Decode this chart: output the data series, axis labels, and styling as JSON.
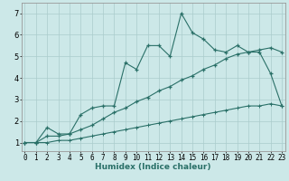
{
  "title": "",
  "xlabel": "Humidex (Indice chaleur)",
  "ylabel": "",
  "bg_color": "#cce8e8",
  "grid_color": "#aacccc",
  "line_color": "#2a7068",
  "x_ticks": [
    0,
    1,
    2,
    3,
    4,
    5,
    6,
    7,
    8,
    9,
    10,
    11,
    12,
    13,
    14,
    15,
    16,
    17,
    18,
    19,
    20,
    21,
    22,
    23
  ],
  "y_ticks": [
    1,
    2,
    3,
    4,
    5,
    6,
    7
  ],
  "xlim": [
    -0.3,
    23.3
  ],
  "ylim": [
    0.6,
    7.5
  ],
  "line1_x": [
    0,
    1,
    2,
    3,
    4,
    5,
    6,
    7,
    8,
    9,
    10,
    11,
    12,
    13,
    14,
    15,
    16,
    17,
    18,
    19,
    20,
    21,
    22,
    23
  ],
  "line1_y": [
    1.0,
    1.0,
    1.7,
    1.4,
    1.4,
    2.3,
    2.6,
    2.7,
    2.7,
    4.7,
    4.4,
    5.5,
    5.5,
    5.0,
    7.0,
    6.1,
    5.8,
    5.3,
    5.2,
    5.5,
    5.2,
    5.2,
    4.2,
    2.7
  ],
  "line2_x": [
    0,
    1,
    2,
    3,
    4,
    5,
    6,
    7,
    8,
    9,
    10,
    11,
    12,
    13,
    14,
    15,
    16,
    17,
    18,
    19,
    20,
    21,
    22,
    23
  ],
  "line2_y": [
    1.0,
    1.0,
    1.3,
    1.3,
    1.4,
    1.6,
    1.8,
    2.1,
    2.4,
    2.6,
    2.9,
    3.1,
    3.4,
    3.6,
    3.9,
    4.1,
    4.4,
    4.6,
    4.9,
    5.1,
    5.2,
    5.3,
    5.4,
    5.2
  ],
  "line3_x": [
    0,
    1,
    2,
    3,
    4,
    5,
    6,
    7,
    8,
    9,
    10,
    11,
    12,
    13,
    14,
    15,
    16,
    17,
    18,
    19,
    20,
    21,
    22,
    23
  ],
  "line3_y": [
    1.0,
    1.0,
    1.0,
    1.1,
    1.1,
    1.2,
    1.3,
    1.4,
    1.5,
    1.6,
    1.7,
    1.8,
    1.9,
    2.0,
    2.1,
    2.2,
    2.3,
    2.4,
    2.5,
    2.6,
    2.7,
    2.7,
    2.8,
    2.7
  ],
  "tick_fontsize": 5.5,
  "xlabel_fontsize": 6.5
}
